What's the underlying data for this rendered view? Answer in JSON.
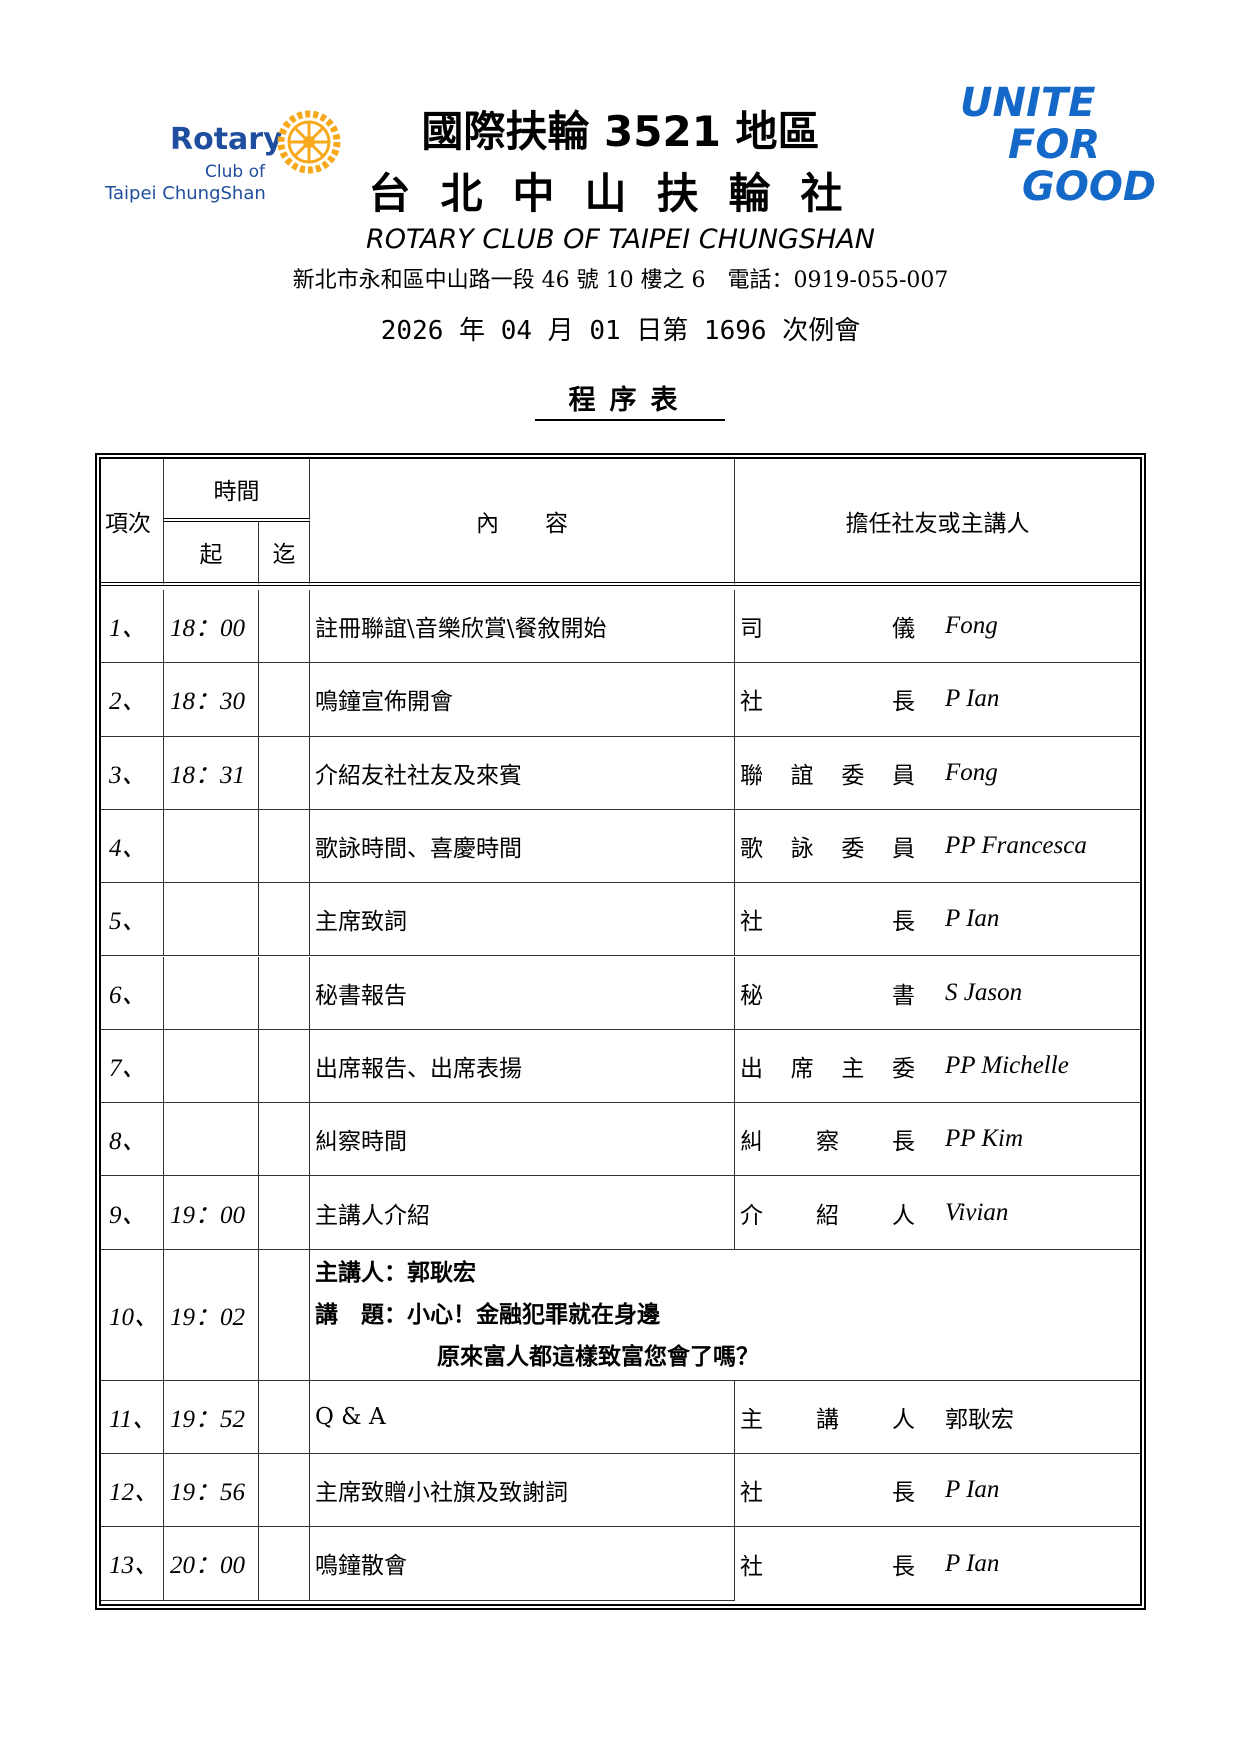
{
  "header": {
    "logo_left": {
      "brand": "Rotary",
      "line2": "Club of",
      "line3": "Taipei ChungShan"
    },
    "logo_right": [
      "UNITE",
      "FOR",
      "GOOD"
    ],
    "district": "國際扶輪 3521 地區",
    "club_name": "台北中山扶輪社",
    "club_name_en": "ROTARY CLUB OF TAIPEI CHUNGSHAN",
    "address": "新北市永和區中山路一段 46 號 10 樓之 6　電話：0919-055-007",
    "meeting": "2026 年 04 月 01 日第 1696 次例會",
    "doc_title": "程序表"
  },
  "table": {
    "headers": {
      "no": "項次",
      "time": "時間",
      "start": "起",
      "end": "迄",
      "content": "內　　容",
      "host": "擔任社友或主講人"
    },
    "rows": [
      {
        "no": "1、",
        "start": "18：00",
        "content": "註冊聯誼\\音樂欣賞\\餐敘開始",
        "role": "司儀",
        "name": "Fong"
      },
      {
        "no": "2、",
        "start": "18：30",
        "content": "鳴鐘宣佈開會",
        "role": "社長",
        "name": "P Ian"
      },
      {
        "no": "3、",
        "start": "18：31",
        "content": "介紹友社社友及來賓",
        "role": "聯誼委員",
        "name": "Fong"
      },
      {
        "no": "4、",
        "start": "",
        "content": "歌詠時間、喜慶時間",
        "role": "歌詠委員",
        "name": "PP Francesca"
      },
      {
        "no": "5、",
        "start": "",
        "content": "主席致詞",
        "role": "社長",
        "name": "P Ian"
      },
      {
        "no": "6、",
        "start": "",
        "content": "秘書報告",
        "role": "秘書",
        "name": "S Jason"
      },
      {
        "no": "7、",
        "start": "",
        "content": "出席報告、出席表揚",
        "role": "出席主委",
        "name": "PP Michelle"
      },
      {
        "no": "8、",
        "start": "",
        "content": "糾察時間",
        "role": "糾察長",
        "name": "PP Kim"
      },
      {
        "no": "9、",
        "start": "19：00",
        "content": "主講人介紹",
        "role": "介紹人",
        "name": "Vivian"
      }
    ],
    "speech": {
      "no": "10、",
      "start": "19：02",
      "speaker": "主講人：郭耿宏",
      "topic1": "講　題：小心！金融犯罪就在身邊",
      "topic2": "原來富人都這樣致富您會了嗎？"
    },
    "rows2": [
      {
        "no": "11、",
        "start": "19：52",
        "content": "Q & A",
        "role": "主講人",
        "name": "郭耿宏"
      },
      {
        "no": "12、",
        "start": "19：56",
        "content": "主席致贈小社旗及致謝詞",
        "role": "社長",
        "name": "P Ian"
      },
      {
        "no": "13、",
        "start": "20：00",
        "content": "鳴鐘散會",
        "role": "社長",
        "name": "P Ian"
      }
    ]
  },
  "colors": {
    "rotary_blue": "#1f4e9e",
    "rotary_gold": "#f7a81b",
    "ufg_blue": "#1469c8"
  }
}
